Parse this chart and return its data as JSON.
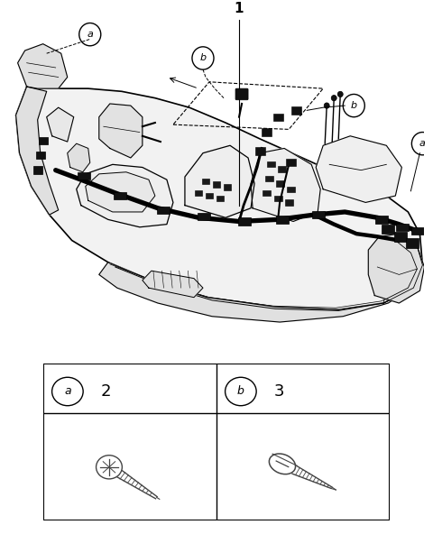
{
  "bg_color": "#ffffff",
  "line_color": "#000000",
  "fig_width": 4.8,
  "fig_height": 5.92,
  "dpi": 100,
  "label_1": "1",
  "label_a": "a",
  "label_b": "b",
  "gray_body": "#f2f2f2",
  "gray_mid": "#e0e0e0",
  "gray_dark": "#c8c8c8"
}
